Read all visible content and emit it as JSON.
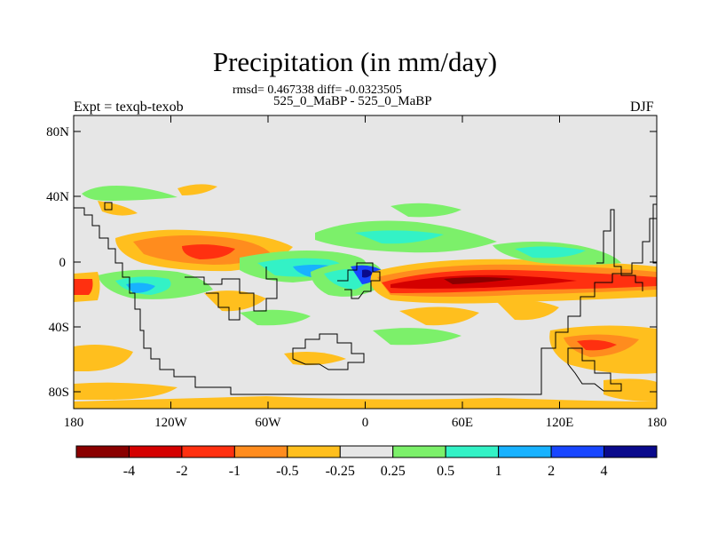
{
  "title": "Precipitation (in mm/day)",
  "stats": "rmsd= 0.467338 diff= -0.0323505",
  "case_label": "525_0_MaBP - 525_0_MaBP",
  "left_label": "Expt = texqb-texob",
  "right_label": "DJF",
  "axes": {
    "y_ticks": [
      "80N",
      "40N",
      "0",
      "40S",
      "80S"
    ],
    "x_ticks": [
      "180",
      "120W",
      "60W",
      "0",
      "60E",
      "120E",
      "180"
    ]
  },
  "colorbar": {
    "labels": [
      "-4",
      "-2",
      "-1",
      "-0.5",
      "-0.25",
      "0.25",
      "0.5",
      "1",
      "2",
      "4"
    ],
    "colors": [
      "#8a0000",
      "#d40000",
      "#ff3010",
      "#ff8c1e",
      "#ffbf1e",
      "#e6e6e6",
      "#7cf06a",
      "#33f2c6",
      "#18b2ff",
      "#1846ff",
      "#0a0a8c"
    ]
  },
  "colors": {
    "background_field": "#e6e6e6",
    "coast": "#000000"
  }
}
